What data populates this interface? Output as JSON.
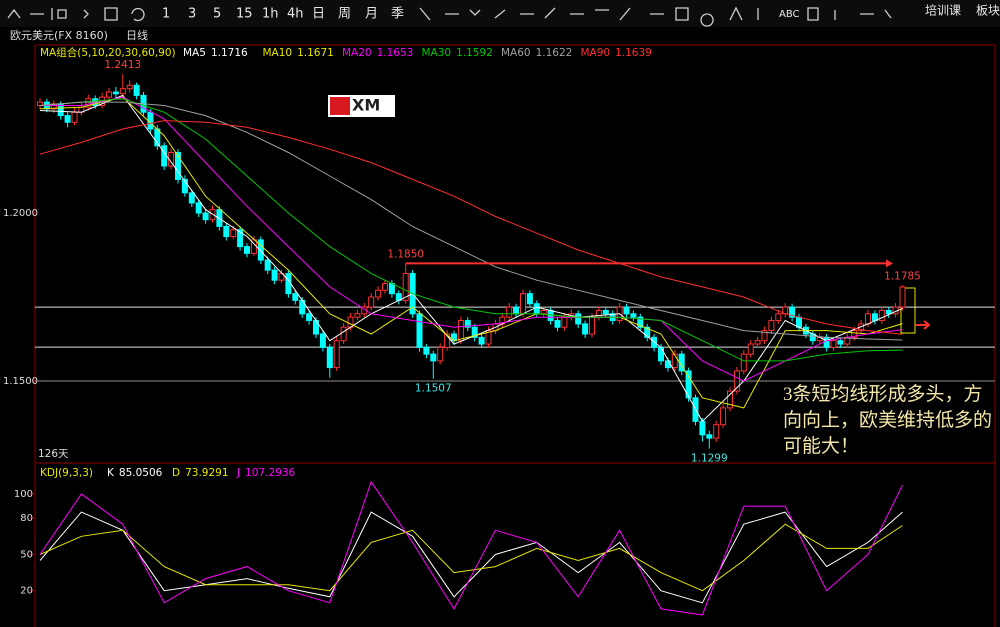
{
  "toolbar": {
    "items": [
      "1",
      "3",
      "5",
      "15",
      "1h",
      "4h",
      "日",
      "周",
      "月",
      "季"
    ],
    "tool_text": "ABC",
    "right": [
      "培训课",
      "板块"
    ]
  },
  "header": {
    "symbol": "欧元美元(FX 8160)",
    "period": "日线"
  },
  "chart_data": [
    {
      "type": "candlestick",
      "legend_title": "MA组合(5,10,20,30,60,90)",
      "logo": "XM",
      "bar_count_label": "126天",
      "annotation": "3条短均线形成多头，方向向上，欧美维持低多的可能大！",
      "up_color": "#ff3232",
      "down_color": "#00ffff",
      "ylim": [
        1.1259,
        1.25
      ],
      "yticks": [
        {
          "value": 1.2,
          "label": "1.2000"
        },
        {
          "value": 1.15,
          "label": "1.1500"
        }
      ],
      "levels": [
        1.172,
        1.1601,
        1.15
      ],
      "extremes": [
        {
          "value": 1.2413,
          "label": "1.2413"
        },
        {
          "value": 1.185,
          "label": "1.1850"
        },
        {
          "value": 1.1507,
          "label": "1.1507"
        },
        {
          "value": 1.1299,
          "label": "1.1299"
        },
        {
          "value": 1.1785,
          "label": "1.1785"
        }
      ],
      "open": [
        1.232,
        1.233,
        1.231,
        1.2325,
        1.229,
        1.227,
        1.23,
        1.2315,
        1.234,
        1.232,
        1.2345,
        1.236,
        1.2355,
        1.237,
        1.238,
        1.235,
        1.23,
        1.225,
        1.22,
        1.214,
        1.218,
        1.21,
        1.206,
        1.203,
        1.2,
        1.198,
        1.201,
        1.196,
        1.193,
        1.195,
        1.19,
        1.188,
        1.192,
        1.186,
        1.183,
        1.18,
        1.182,
        1.176,
        1.174,
        1.17,
        1.168,
        1.164,
        1.16,
        1.154,
        1.162,
        1.166,
        1.169,
        1.17,
        1.172,
        1.175,
        1.177,
        1.179,
        1.176,
        1.174,
        1.182,
        1.17,
        1.16,
        1.158,
        1.156,
        1.16,
        1.164,
        1.162,
        1.168,
        1.166,
        1.163,
        1.161,
        1.165,
        1.167,
        1.169,
        1.172,
        1.17,
        1.176,
        1.173,
        1.17,
        1.171,
        1.168,
        1.166,
        1.169,
        1.17,
        1.167,
        1.164,
        1.169,
        1.171,
        1.17,
        1.168,
        1.172,
        1.17,
        1.169,
        1.166,
        1.163,
        1.16,
        1.156,
        1.154,
        1.158,
        1.153,
        1.145,
        1.138,
        1.134,
        1.133,
        1.137,
        1.142,
        1.147,
        1.153,
        1.158,
        1.161,
        1.162,
        1.165,
        1.168,
        1.17,
        1.172,
        1.169,
        1.166,
        1.164,
        1.162,
        1.163,
        1.16,
        1.162,
        1.161,
        1.163,
        1.165,
        1.167,
        1.17,
        1.168,
        1.171,
        1.17,
        1.172
      ],
      "high": [
        1.2342,
        1.234,
        1.2335,
        1.2332,
        1.23,
        1.2312,
        1.2328,
        1.2352,
        1.235,
        1.2358,
        1.2372,
        1.2375,
        1.2413,
        1.2395,
        1.2388,
        1.236,
        1.231,
        1.2262,
        1.221,
        1.2192,
        1.219,
        1.2112,
        1.207,
        1.204,
        1.2012,
        1.2022,
        1.202,
        1.197,
        1.1962,
        1.196,
        1.191,
        1.1932,
        1.193,
        1.187,
        1.184,
        1.1832,
        1.183,
        1.177,
        1.175,
        1.171,
        1.169,
        1.165,
        1.161,
        1.1632,
        1.1672,
        1.1702,
        1.1712,
        1.1732,
        1.1762,
        1.1782,
        1.1802,
        1.18,
        1.177,
        1.185,
        1.183,
        1.171,
        1.161,
        1.159,
        1.1612,
        1.1652,
        1.165,
        1.1692,
        1.169,
        1.167,
        1.164,
        1.1662,
        1.1682,
        1.1702,
        1.1732,
        1.173,
        1.1772,
        1.177,
        1.174,
        1.1722,
        1.172,
        1.169,
        1.1702,
        1.1712,
        1.171,
        1.168,
        1.1702,
        1.1722,
        1.172,
        1.171,
        1.1732,
        1.173,
        1.171,
        1.17,
        1.167,
        1.164,
        1.161,
        1.157,
        1.1592,
        1.159,
        1.154,
        1.146,
        1.139,
        1.1352,
        1.1382,
        1.1432,
        1.1482,
        1.1542,
        1.1592,
        1.1622,
        1.1632,
        1.1662,
        1.1692,
        1.1712,
        1.1732,
        1.173,
        1.17,
        1.167,
        1.165,
        1.1642,
        1.164,
        1.1632,
        1.163,
        1.1642,
        1.1662,
        1.1682,
        1.1712,
        1.171,
        1.1722,
        1.172,
        1.1732,
        1.1785
      ],
      "low": [
        1.2308,
        1.23,
        1.2298,
        1.2278,
        1.2255,
        1.2262,
        1.229,
        1.2305,
        1.231,
        1.2312,
        1.2335,
        1.234,
        1.2345,
        1.2358,
        1.2338,
        1.229,
        1.2238,
        1.2188,
        1.2128,
        1.213,
        1.2088,
        1.2048,
        1.2018,
        1.1988,
        1.1968,
        1.1972,
        1.1948,
        1.1918,
        1.1922,
        1.1888,
        1.1868,
        1.1872,
        1.1848,
        1.1818,
        1.1788,
        1.1792,
        1.1748,
        1.1728,
        1.1688,
        1.1668,
        1.1628,
        1.1588,
        1.151,
        1.153,
        1.161,
        1.165,
        1.168,
        1.169,
        1.171,
        1.174,
        1.176,
        1.1748,
        1.1728,
        1.173,
        1.1688,
        1.1588,
        1.1568,
        1.1507,
        1.155,
        1.159,
        1.1608,
        1.161,
        1.1648,
        1.1618,
        1.1598,
        1.16,
        1.164,
        1.166,
        1.168,
        1.1688,
        1.169,
        1.1718,
        1.1688,
        1.169,
        1.1668,
        1.1648,
        1.165,
        1.168,
        1.1658,
        1.1628,
        1.163,
        1.168,
        1.1688,
        1.1668,
        1.167,
        1.1688,
        1.1678,
        1.1648,
        1.1618,
        1.1588,
        1.1548,
        1.1528,
        1.153,
        1.1518,
        1.1438,
        1.1368,
        1.132,
        1.1299,
        1.1318,
        1.136,
        1.141,
        1.146,
        1.152,
        1.157,
        1.16,
        1.161,
        1.164,
        1.167,
        1.169,
        1.1678,
        1.1648,
        1.1628,
        1.1608,
        1.161,
        1.1588,
        1.159,
        1.1598,
        1.16,
        1.162,
        1.164,
        1.166,
        1.1668,
        1.167,
        1.1688,
        1.169,
        1.171
      ],
      "close": [
        1.233,
        1.231,
        1.2325,
        1.229,
        1.227,
        1.23,
        1.2315,
        1.234,
        1.232,
        1.2345,
        1.236,
        1.2355,
        1.237,
        1.238,
        1.235,
        1.23,
        1.225,
        1.22,
        1.214,
        1.218,
        1.21,
        1.206,
        1.203,
        1.2,
        1.198,
        1.201,
        1.196,
        1.193,
        1.195,
        1.19,
        1.188,
        1.192,
        1.186,
        1.183,
        1.18,
        1.182,
        1.176,
        1.174,
        1.17,
        1.168,
        1.164,
        1.16,
        1.154,
        1.162,
        1.166,
        1.169,
        1.17,
        1.172,
        1.175,
        1.177,
        1.179,
        1.176,
        1.174,
        1.182,
        1.17,
        1.16,
        1.158,
        1.156,
        1.16,
        1.164,
        1.162,
        1.168,
        1.166,
        1.163,
        1.161,
        1.165,
        1.167,
        1.169,
        1.172,
        1.17,
        1.176,
        1.173,
        1.17,
        1.171,
        1.168,
        1.166,
        1.169,
        1.17,
        1.167,
        1.164,
        1.169,
        1.171,
        1.17,
        1.168,
        1.172,
        1.17,
        1.169,
        1.166,
        1.163,
        1.16,
        1.156,
        1.154,
        1.158,
        1.153,
        1.145,
        1.138,
        1.134,
        1.133,
        1.137,
        1.142,
        1.147,
        1.153,
        1.158,
        1.161,
        1.162,
        1.165,
        1.168,
        1.17,
        1.172,
        1.169,
        1.166,
        1.164,
        1.162,
        1.163,
        1.16,
        1.162,
        1.161,
        1.163,
        1.165,
        1.167,
        1.17,
        1.168,
        1.171,
        1.17,
        1.172,
        1.178
      ],
      "series": [
        {
          "name": "MA5",
          "color": "#ffffff",
          "x": [
            0,
            6,
            12,
            18,
            24,
            30,
            36,
            42,
            48,
            54,
            60,
            66,
            72,
            78,
            84,
            90,
            96,
            102,
            108,
            114,
            120,
            125
          ],
          "values": [
            1.2305,
            1.23,
            1.235,
            1.218,
            1.201,
            1.193,
            1.18,
            1.162,
            1.17,
            1.176,
            1.161,
            1.166,
            1.172,
            1.169,
            1.17,
            1.16,
            1.138,
            1.15,
            1.168,
            1.162,
            1.167,
            1.1716
          ]
        },
        {
          "name": "MA10",
          "color": "#e8e800",
          "x": [
            0,
            6,
            12,
            18,
            24,
            30,
            36,
            42,
            48,
            54,
            60,
            66,
            72,
            78,
            84,
            90,
            96,
            102,
            108,
            114,
            120,
            125
          ],
          "values": [
            1.231,
            1.2315,
            1.2345,
            1.223,
            1.205,
            1.194,
            1.183,
            1.17,
            1.164,
            1.172,
            1.162,
            1.165,
            1.17,
            1.169,
            1.169,
            1.164,
            1.145,
            1.142,
            1.165,
            1.165,
            1.164,
            1.1671
          ]
        },
        {
          "name": "MA20",
          "color": "#ff00ff",
          "x": [
            0,
            6,
            12,
            18,
            24,
            30,
            36,
            42,
            48,
            54,
            60,
            66,
            72,
            78,
            84,
            90,
            96,
            102,
            108,
            114,
            120,
            125
          ],
          "values": [
            1.232,
            1.232,
            1.2345,
            1.228,
            1.215,
            1.202,
            1.19,
            1.178,
            1.17,
            1.168,
            1.166,
            1.167,
            1.169,
            1.169,
            1.169,
            1.168,
            1.156,
            1.15,
            1.156,
            1.162,
            1.164,
            1.1653
          ]
        },
        {
          "name": "MA30",
          "color": "#00c800",
          "x": [
            0,
            6,
            12,
            18,
            24,
            30,
            36,
            42,
            48,
            54,
            60,
            66,
            72,
            78,
            84,
            90,
            96,
            102,
            108,
            114,
            120,
            125
          ],
          "values": [
            1.232,
            1.233,
            1.234,
            1.23,
            1.222,
            1.211,
            1.2,
            1.19,
            1.182,
            1.176,
            1.172,
            1.17,
            1.17,
            1.169,
            1.169,
            1.168,
            1.162,
            1.156,
            1.156,
            1.158,
            1.159,
            1.1592
          ]
        },
        {
          "name": "MA60",
          "color": "#a0a0a0",
          "x": [
            0,
            6,
            12,
            18,
            24,
            30,
            36,
            42,
            48,
            54,
            60,
            66,
            72,
            78,
            84,
            90,
            96,
            102,
            108,
            114,
            120,
            125
          ],
          "values": [
            1.232,
            1.233,
            1.233,
            1.232,
            1.229,
            1.224,
            1.218,
            1.211,
            1.204,
            1.196,
            1.19,
            1.184,
            1.18,
            1.177,
            1.174,
            1.171,
            1.168,
            1.165,
            1.164,
            1.163,
            1.1625,
            1.1622
          ]
        },
        {
          "name": "MA90",
          "color": "#ff3030",
          "x": [
            0,
            6,
            12,
            18,
            24,
            30,
            36,
            42,
            48,
            54,
            60,
            66,
            72,
            78,
            84,
            90,
            96,
            102,
            108,
            114,
            120,
            125
          ],
          "values": [
            1.2175,
            1.221,
            1.225,
            1.2275,
            1.227,
            1.2255,
            1.2225,
            1.219,
            1.215,
            1.21,
            1.205,
            1.199,
            1.194,
            1.189,
            1.185,
            1.181,
            1.178,
            1.175,
            1.17,
            1.167,
            1.165,
            1.1639
          ]
        }
      ]
    },
    {
      "type": "line",
      "legend_title": "KDJ(9,3,3)",
      "ylim": [
        -10,
        124
      ],
      "yticks": [
        100,
        80,
        50,
        20
      ],
      "series": [
        {
          "name": "K",
          "color": "#ffffff",
          "x": [
            0,
            6,
            12,
            18,
            24,
            30,
            36,
            42,
            48,
            54,
            60,
            66,
            72,
            78,
            84,
            90,
            96,
            102,
            108,
            114,
            120,
            125
          ],
          "values": [
            45,
            85,
            70,
            20,
            25,
            30,
            22,
            15,
            85,
            65,
            15,
            50,
            60,
            35,
            60,
            20,
            10,
            75,
            85,
            40,
            60,
            85.0506
          ]
        },
        {
          "name": "D",
          "color": "#e8e800",
          "x": [
            0,
            6,
            12,
            18,
            24,
            30,
            36,
            42,
            48,
            54,
            60,
            66,
            72,
            78,
            84,
            90,
            96,
            102,
            108,
            114,
            120,
            125
          ],
          "values": [
            50,
            65,
            70,
            40,
            25,
            25,
            25,
            20,
            60,
            70,
            35,
            40,
            55,
            45,
            55,
            35,
            20,
            45,
            75,
            55,
            55,
            73.9291
          ]
        },
        {
          "name": "J",
          "color": "#ff00ff",
          "x": [
            0,
            6,
            12,
            18,
            24,
            30,
            36,
            42,
            48,
            54,
            60,
            66,
            72,
            78,
            84,
            90,
            96,
            102,
            108,
            114,
            120,
            125
          ],
          "values": [
            50,
            100,
            75,
            10,
            30,
            40,
            20,
            10,
            110,
            60,
            5,
            70,
            60,
            15,
            70,
            5,
            0,
            90,
            90,
            20,
            50,
            107.2936
          ]
        }
      ]
    }
  ]
}
